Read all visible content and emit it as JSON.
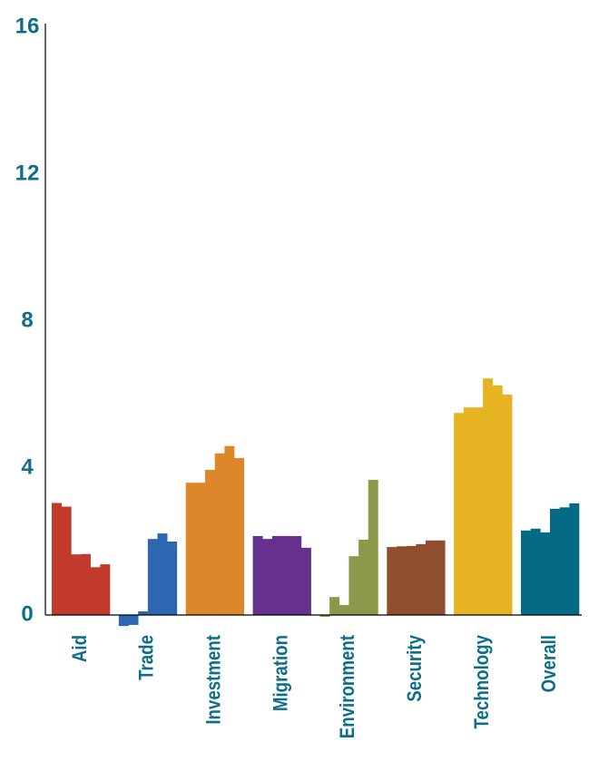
{
  "chart_data": {
    "type": "grouped-bar",
    "categories": [
      "Aid",
      "Trade",
      "Investment",
      "Migration",
      "Environment",
      "Security",
      "Technology",
      "Overall"
    ],
    "values": [
      [
        3.05,
        2.95,
        1.65,
        1.66,
        1.3,
        1.38
      ],
      [
        -0.3,
        -0.27,
        0.1,
        2.07,
        2.22,
        2.0
      ],
      [
        3.6,
        3.6,
        3.95,
        4.4,
        4.6,
        4.27
      ],
      [
        2.15,
        2.07,
        2.15,
        2.15,
        2.15,
        1.83
      ],
      [
        -0.05,
        0.49,
        0.27,
        1.6,
        2.05,
        3.68
      ],
      [
        1.85,
        1.87,
        1.88,
        1.93,
        2.03,
        2.03
      ],
      [
        5.5,
        5.65,
        5.65,
        6.44,
        6.25,
        6.0
      ],
      [
        2.3,
        2.35,
        2.25,
        2.89,
        2.93,
        3.04
      ]
    ],
    "colors": [
      "#c23a2b",
      "#2e67b1",
      "#dd862a",
      "#66308f",
      "#8a9a4a",
      "#8f4f2e",
      "#e6b323",
      "#046a85"
    ],
    "ylim": [
      0,
      16
    ],
    "yticks": [
      0,
      4,
      8,
      12,
      16
    ]
  }
}
